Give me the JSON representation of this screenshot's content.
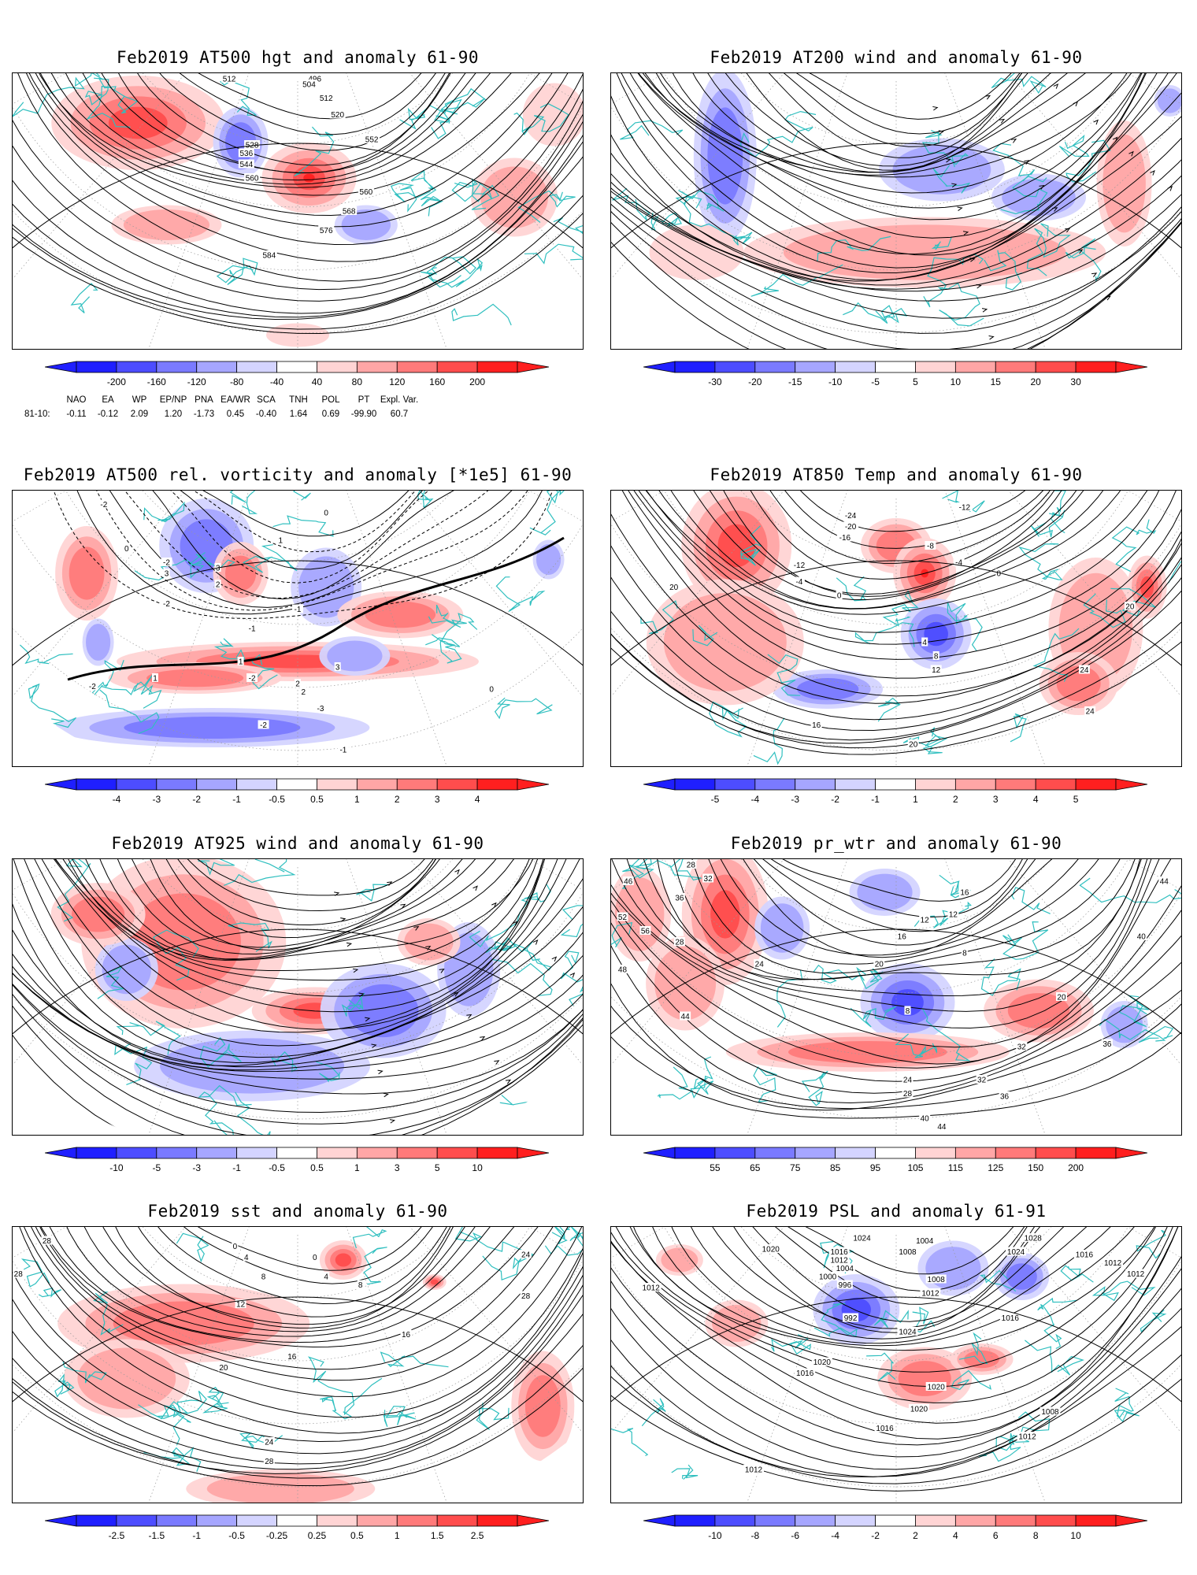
{
  "panels": [
    {
      "id": "p1",
      "title": "Feb2019 AT500 hgt and anomaly 61-90",
      "colorbar": [
        "-200",
        "-160",
        "-120",
        "-80",
        "-40",
        "40",
        "80",
        "120",
        "160",
        "200"
      ],
      "contour_labels": [
        "512",
        "496",
        "504",
        "512",
        "520",
        "528",
        "536",
        "544",
        "552",
        "560",
        "560",
        "568",
        "576",
        "584"
      ]
    },
    {
      "id": "p2",
      "title": "Feb2019 AT200 wind and anomaly 61-90",
      "colorbar": [
        "-30",
        "-20",
        "-15",
        "-10",
        "-5",
        "5",
        "10",
        "15",
        "20",
        "30"
      ],
      "contour_labels": []
    },
    {
      "id": "p3",
      "title": "Feb2019 AT500 rel. vorticity and anomaly [*1e5] 61-90",
      "colorbar": [
        "-4",
        "-3",
        "-2",
        "-1",
        "-0.5",
        "0.5",
        "1",
        "2",
        "3",
        "4"
      ],
      "contour_labels": [
        "-2",
        "-2",
        "3",
        "3",
        "2",
        "1",
        "-1",
        "-2",
        "-1",
        "1",
        "2",
        "3",
        "-2",
        "1",
        "-2",
        "2",
        "-3",
        "-2",
        "-1",
        "0",
        "0",
        "0"
      ]
    },
    {
      "id": "p4",
      "title": "Feb2019 AT850 Temp and anomaly 61-90",
      "colorbar": [
        "-5",
        "-4",
        "-3",
        "-2",
        "-1",
        "1",
        "2",
        "3",
        "4",
        "5"
      ],
      "contour_labels": [
        "-24",
        "-20",
        "-16",
        "-12",
        "-12",
        "-4",
        "0",
        "-8",
        "-4",
        "0",
        "4",
        "8",
        "12",
        "16",
        "20",
        "20",
        "20",
        "24",
        "24"
      ]
    },
    {
      "id": "p5",
      "title": "Feb2019 AT925 wind and anomaly 61-90",
      "colorbar": [
        "-10",
        "-5",
        "-3",
        "-1",
        "-0.5",
        "0.5",
        "1",
        "3",
        "5",
        "10"
      ],
      "contour_labels": []
    },
    {
      "id": "p6",
      "title": "Feb2019 pr_wtr and anomaly 61-90",
      "colorbar": [
        "55",
        "65",
        "75",
        "85",
        "95",
        "105",
        "115",
        "125",
        "150",
        "200"
      ],
      "contour_labels": [
        "46",
        "28",
        "32",
        "36",
        "52",
        "56",
        "48",
        "44",
        "28",
        "24",
        "20",
        "16",
        "12",
        "8",
        "8",
        "12",
        "16",
        "20",
        "24",
        "28",
        "32",
        "36",
        "40",
        "44",
        "44",
        "40",
        "36",
        "32"
      ]
    },
    {
      "id": "p7",
      "title": "Feb2019 sst and anomaly 61-90",
      "colorbar": [
        "-2.5",
        "-1.5",
        "-1",
        "-0.5",
        "-0.25",
        "0.25",
        "0.5",
        "1",
        "1.5",
        "2.5"
      ],
      "contour_labels": [
        "28",
        "28",
        "0",
        "4",
        "8",
        "12",
        "16",
        "20",
        "24",
        "28",
        "24",
        "28",
        "16",
        "8",
        "4",
        "0"
      ]
    },
    {
      "id": "p8",
      "title": "Feb2019 PSL and anomaly 61-91",
      "colorbar": [
        "-10",
        "-8",
        "-6",
        "-4",
        "-2",
        "2",
        "4",
        "6",
        "8",
        "10"
      ],
      "contour_labels": [
        "1024",
        "1016",
        "1012",
        "1004",
        "1000",
        "996",
        "992",
        "1008",
        "1004",
        "1008",
        "1012",
        "1020",
        "1016",
        "1020",
        "1024",
        "1028",
        "1024",
        "1016",
        "1012",
        "1012",
        "1012",
        "1016",
        "1020",
        "1012",
        "1008",
        "1012",
        "1020",
        "1016"
      ]
    }
  ],
  "teleconnections": {
    "row_label": "81-10:",
    "names": [
      "NAO",
      "EA",
      "WP",
      "EP/NP",
      "PNA",
      "EA/WR",
      "SCA",
      "TNH",
      "POL",
      "PT",
      "Expl. Var."
    ],
    "values": [
      "-0.11",
      "-0.12",
      "2.09",
      "1.20",
      "-1.73",
      "0.45",
      "-0.40",
      "1.64",
      "0.69",
      "-99.90",
      "60.7"
    ]
  },
  "colors": {
    "map_line": "#000000",
    "coastline": "#2fbfbf",
    "blue_scale": [
      "#1f1fff",
      "#4d4dff",
      "#7a7aff",
      "#a6a6ff",
      "#d4d4ff"
    ],
    "red_scale": [
      "#ffd4d4",
      "#ffa6a6",
      "#ff7a7a",
      "#ff4d4d",
      "#ff1f1f"
    ]
  }
}
